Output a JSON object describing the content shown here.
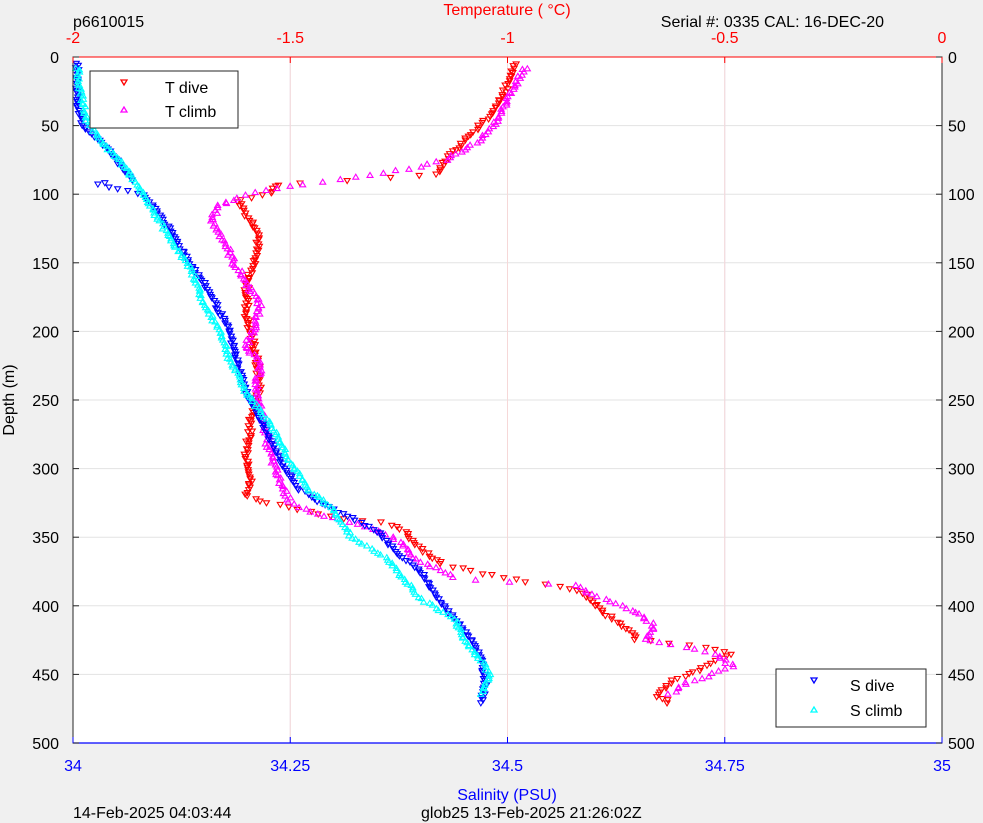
{
  "header": {
    "left_label": "p6610015",
    "right_label": "Serial #: 0335  CAL: 16-DEC-20"
  },
  "footer": {
    "left": "14-Feb-2025 04:03:44",
    "center": "glob25 13-Feb-2025 21:26:02Z"
  },
  "chart_data": {
    "type": "scatter",
    "y_axis": {
      "label": "Depth (m)",
      "ylim": [
        500,
        0
      ],
      "ticks": [
        0,
        50,
        100,
        150,
        200,
        250,
        300,
        350,
        400,
        450,
        500
      ],
      "reversed": true
    },
    "x_bottom": {
      "label": "Salinity (PSU)",
      "xlim": [
        34,
        35
      ],
      "ticks": [
        34,
        34.25,
        34.5,
        34.75,
        35
      ],
      "tick_labels": [
        "34",
        "34.25",
        "34.5",
        "34.75",
        "35"
      ],
      "color": "#0000ff"
    },
    "x_top": {
      "label": "Temperature (   °C)",
      "xlim": [
        -2,
        0
      ],
      "ticks": [
        -2,
        -1.5,
        -1,
        -0.5,
        0
      ],
      "tick_labels": [
        "-2",
        "-1.5",
        "-1",
        "-0.5",
        "0"
      ],
      "color": "#ff0000"
    },
    "grid": true,
    "legends": [
      {
        "position": "top-left",
        "entries": [
          {
            "label": "T dive",
            "color": "#ff0000",
            "marker": "triangle-down"
          },
          {
            "label": "T climb",
            "color": "#ff00ff",
            "marker": "triangle-up"
          }
        ]
      },
      {
        "position": "bottom-right",
        "entries": [
          {
            "label": "S dive",
            "color": "#0000ff",
            "marker": "triangle-down"
          },
          {
            "label": "S climb",
            "color": "#00ffff",
            "marker": "triangle-up"
          }
        ]
      }
    ],
    "series": [
      {
        "name": "T dive",
        "axis": "top",
        "color": "#ff0000",
        "marker": "triangle-down",
        "profile": [
          [
            5,
            -0.98
          ],
          [
            20,
            -1.0
          ],
          [
            40,
            -1.03
          ],
          [
            55,
            -1.08
          ],
          [
            70,
            -1.13
          ],
          [
            85,
            -1.16
          ],
          [
            88,
            -1.25
          ],
          [
            92,
            -1.52
          ],
          [
            100,
            -1.55
          ],
          [
            105,
            -1.62
          ],
          [
            115,
            -1.6
          ],
          [
            128,
            -1.57
          ],
          [
            145,
            -1.58
          ],
          [
            165,
            -1.6
          ],
          [
            190,
            -1.6
          ],
          [
            215,
            -1.58
          ],
          [
            240,
            -1.57
          ],
          [
            265,
            -1.59
          ],
          [
            290,
            -1.6
          ],
          [
            305,
            -1.59
          ],
          [
            320,
            -1.6
          ],
          [
            325,
            -1.55
          ],
          [
            335,
            -1.4
          ],
          [
            340,
            -1.28
          ],
          [
            345,
            -1.24
          ],
          [
            355,
            -1.21
          ],
          [
            370,
            -1.15
          ],
          [
            383,
            -0.95
          ],
          [
            385,
            -0.88
          ],
          [
            392,
            -0.82
          ],
          [
            405,
            -0.78
          ],
          [
            418,
            -0.72
          ],
          [
            425,
            -0.7
          ],
          [
            430,
            -0.55
          ],
          [
            435,
            -0.48
          ],
          [
            445,
            -0.55
          ],
          [
            455,
            -0.62
          ],
          [
            465,
            -0.66
          ],
          [
            472,
            -0.62
          ]
        ]
      },
      {
        "name": "T climb",
        "axis": "top",
        "color": "#ff00ff",
        "marker": "triangle-up",
        "profile": [
          [
            8,
            -0.96
          ],
          [
            25,
            -0.99
          ],
          [
            45,
            -1.02
          ],
          [
            60,
            -1.06
          ],
          [
            75,
            -1.14
          ],
          [
            80,
            -1.2
          ],
          [
            88,
            -1.35
          ],
          [
            95,
            -1.52
          ],
          [
            102,
            -1.62
          ],
          [
            110,
            -1.67
          ],
          [
            120,
            -1.68
          ],
          [
            135,
            -1.65
          ],
          [
            150,
            -1.63
          ],
          [
            165,
            -1.6
          ],
          [
            180,
            -1.57
          ],
          [
            195,
            -1.58
          ],
          [
            210,
            -1.6
          ],
          [
            225,
            -1.57
          ],
          [
            245,
            -1.58
          ],
          [
            265,
            -1.56
          ],
          [
            285,
            -1.55
          ],
          [
            305,
            -1.53
          ],
          [
            325,
            -1.5
          ],
          [
            335,
            -1.42
          ],
          [
            345,
            -1.3
          ],
          [
            355,
            -1.24
          ],
          [
            365,
            -1.22
          ],
          [
            380,
            -1.12
          ],
          [
            385,
            -0.85
          ],
          [
            395,
            -0.78
          ],
          [
            405,
            -0.7
          ],
          [
            415,
            -0.66
          ],
          [
            425,
            -0.68
          ],
          [
            435,
            -0.52
          ],
          [
            445,
            -0.48
          ],
          [
            455,
            -0.58
          ],
          [
            465,
            -0.63
          ]
        ]
      },
      {
        "name": "S dive",
        "axis": "bottom",
        "color": "#0000ff",
        "marker": "triangle-down",
        "profile": [
          [
            5,
            34.005
          ],
          [
            30,
            34.005
          ],
          [
            50,
            34.01
          ],
          [
            60,
            34.03
          ],
          [
            75,
            34.05
          ],
          [
            90,
            34.07
          ],
          [
            92,
            34.02
          ],
          [
            100,
            34.08
          ],
          [
            115,
            34.1
          ],
          [
            135,
            34.12
          ],
          [
            155,
            34.14
          ],
          [
            175,
            34.16
          ],
          [
            200,
            34.18
          ],
          [
            225,
            34.19
          ],
          [
            245,
            34.2
          ],
          [
            270,
            34.22
          ],
          [
            295,
            34.24
          ],
          [
            315,
            34.26
          ],
          [
            330,
            34.3
          ],
          [
            345,
            34.35
          ],
          [
            360,
            34.37
          ],
          [
            375,
            34.4
          ],
          [
            395,
            34.42
          ],
          [
            410,
            34.44
          ],
          [
            425,
            34.46
          ],
          [
            440,
            34.47
          ],
          [
            455,
            34.475
          ],
          [
            472,
            34.47
          ]
        ]
      },
      {
        "name": "S climb",
        "axis": "bottom",
        "color": "#00ffff",
        "marker": "triangle-up",
        "profile": [
          [
            8,
            34.005
          ],
          [
            30,
            34.01
          ],
          [
            45,
            34.015
          ],
          [
            60,
            34.03
          ],
          [
            80,
            34.06
          ],
          [
            100,
            34.08
          ],
          [
            120,
            34.1
          ],
          [
            140,
            34.12
          ],
          [
            160,
            34.14
          ],
          [
            180,
            34.15
          ],
          [
            200,
            34.17
          ],
          [
            220,
            34.18
          ],
          [
            245,
            34.2
          ],
          [
            270,
            34.23
          ],
          [
            295,
            34.25
          ],
          [
            315,
            34.27
          ],
          [
            330,
            34.3
          ],
          [
            350,
            34.32
          ],
          [
            365,
            34.36
          ],
          [
            380,
            34.38
          ],
          [
            395,
            34.4
          ],
          [
            410,
            34.44
          ],
          [
            425,
            34.45
          ],
          [
            440,
            34.47
          ],
          [
            450,
            34.48
          ],
          [
            465,
            34.47
          ]
        ]
      }
    ]
  }
}
